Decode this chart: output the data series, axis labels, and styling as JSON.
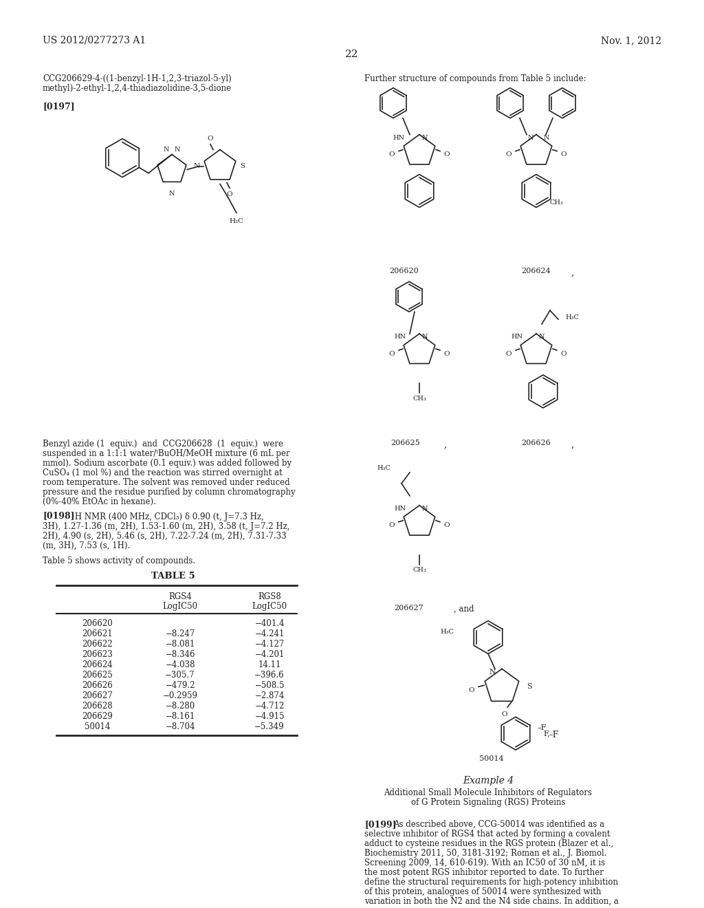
{
  "bg_color": "#ffffff",
  "header_left": "US 2012/0277273 A1",
  "header_right": "Nov. 1, 2012",
  "page_number": "22",
  "compound_name_line1": "CCG206629-4-((1-benzyl-1H-1,2,3-triazol-5-yl)",
  "compound_name_line2": "methyl)-2-ethyl-1,2,4-thiadiazolidine-3,5-dione",
  "paragraph_tag": "[0197]",
  "right_header": "Further structure of compounds from Table 5 include:",
  "body_text_1": "Benzyl azide (1  equiv.)  and  CCG206628  (1  equiv.)  were\nsuspended in a 1:1:1 water/ᵗBuOH/MeOH mixture (6 mL per\nmmol). Sodium ascorbate (0.1 equiv.) was added followed by\nCuSO₄ (1 mol %) and the reaction was stirred overnight at\nroom temperature. The solvent was removed under reduced\npressure and the residue purified by column chromatography\n(0%-40% EtOAc in hexane).",
  "paragraph_tag2": "[0198]",
  "nmr_text": "¹H NMR (400 MHz, CDCl₃) δ 0.90 (t, J=7.3 Hz,\n3H), 1.27-1.36 (m, 2H), 1.53-1.60 (m, 2H), 3.58 (t, J=7.2 Hz,\n2H), 4.90 (s, 2H), 5.46 (s, 2H), 7.22-7.24 (m, 2H), 7.31-7.33\n(m, 3H), 7.53 (s, 1H).",
  "table_intro": "Table 5 shows activity of compounds.",
  "table_title": "TABLE 5",
  "table_col1_header": "",
  "table_col2_header1": "RGS4",
  "table_col2_header2": "LogIC50",
  "table_col3_header1": "RGS8",
  "table_col3_header2": "LogIC50",
  "table_rows": [
    [
      "206620",
      "",
      "−401.4"
    ],
    [
      "206621",
      "−8.247",
      "−4.241"
    ],
    [
      "206622",
      "−8.081",
      "−4.127"
    ],
    [
      "206623",
      "−8.346",
      "−4.201"
    ],
    [
      "206624",
      "−4.038",
      "14.11"
    ],
    [
      "206625",
      "−305.7",
      "−396.6"
    ],
    [
      "206626",
      "−479.2",
      "−508.5"
    ],
    [
      "206627",
      "−0.2959",
      "−2.874"
    ],
    [
      "206628",
      "−8.280",
      "−4.712"
    ],
    [
      "206629",
      "−8.161",
      "−4.915"
    ],
    [
      "50014",
      "−8.704",
      "−5.349"
    ]
  ],
  "right_col_labels": [
    "206620",
    "206624",
    "206625",
    "206626",
    "206627",
    "50014"
  ],
  "example4_title": "Example 4",
  "example4_subtitle": "Additional Small Molecule Inhibitors of Regulators\nof G Protein Signaling (RGS) Proteins",
  "paragraph_tag3": "[0199]",
  "body_text_2": "As described above, CCG-50014 was identified as a\nselective inhibitor of RGS4 that acted by forming a covalent\nadduct to cysteine residues in the RGS protein (Blazer et al.,\nBiochemistry 2011, 50, 3181-3192; Roman et al., J. Biomol.\nScreening 2009, 14, 610-619). With an IC50 of 30 nM, it is\nthe most potent RGS inhibitor reported to date. To further\ndefine the structural requirements for high-potency inhibition\nof this protein, analogues of 50014 were synthesized with\nvariation in both the N2 and the N4 side chains. In addition, a"
}
